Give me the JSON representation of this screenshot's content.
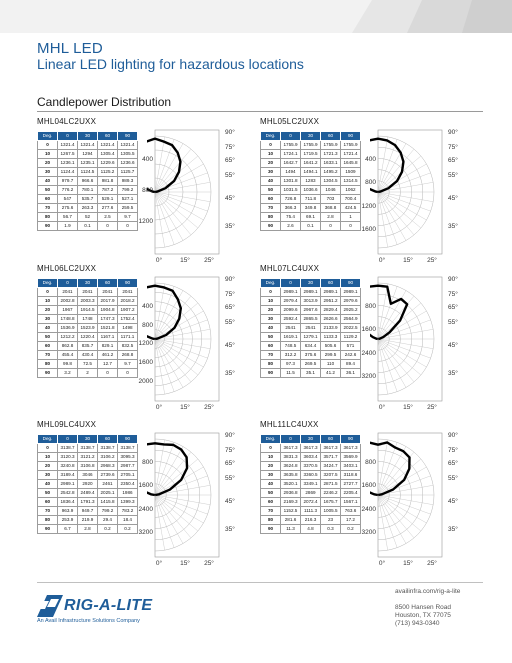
{
  "header": {
    "title": "MHL LED",
    "subtitle": "Linear LED lighting for hazardous locations"
  },
  "section": {
    "title": "Candlepower Distribution"
  },
  "products": [
    {
      "model": "MHL04LC2UXX",
      "columns": [
        "Deg.",
        "0",
        "30",
        "60",
        "90"
      ],
      "rows": [
        [
          "0",
          "1321.4",
          "1321.4",
          "1321.4",
          "1321.4"
        ],
        [
          "10",
          "1267.5",
          "1294",
          "1305.4",
          "1305.5"
        ],
        [
          "20",
          "1236.1",
          "1235.1",
          "1229.6",
          "1236.6"
        ],
        [
          "30",
          "1124.4",
          "1124.5",
          "1125.2",
          "1125.7"
        ],
        [
          "40",
          "979.7",
          "966.6",
          "981.8",
          "989.3"
        ],
        [
          "50",
          "776.2",
          "780.1",
          "787.2",
          "799.2"
        ],
        [
          "60",
          "547",
          "535.7",
          "529.1",
          "527.1"
        ],
        [
          "70",
          "275.6",
          "263.3",
          "277.6",
          "259.5"
        ],
        [
          "80",
          "56.7",
          "52",
          "2.5",
          "9.7"
        ],
        [
          "90",
          "1.9",
          "0.1",
          "0",
          "0"
        ]
      ],
      "scale_labels": [
        "400",
        "800",
        "1200"
      ],
      "angle_labels": [
        "90°",
        "75°",
        "65°",
        "55°",
        "45°",
        "35°"
      ],
      "bottom_labels": [
        "0°",
        "15°",
        "25°"
      ]
    },
    {
      "model": "MHL05LC2UXX",
      "columns": [
        "Deg.",
        "0",
        "30",
        "60",
        "90"
      ],
      "rows": [
        [
          "0",
          "1755.9",
          "1755.9",
          "1755.9",
          "1755.9"
        ],
        [
          "10",
          "1724.1",
          "1719.5",
          "1721.3",
          "1721.4"
        ],
        [
          "20",
          "1642.7",
          "1641.2",
          "1633.1",
          "1645.8"
        ],
        [
          "30",
          "1494",
          "1494.1",
          "1495.2",
          "1509"
        ],
        [
          "40",
          "1301.8",
          "1283",
          "1304.5",
          "1314.5"
        ],
        [
          "50",
          "1031.5",
          "1036.6",
          "1046",
          "1062"
        ],
        [
          "60",
          "726.8",
          "711.8",
          "703",
          "700.4"
        ],
        [
          "70",
          "366.3",
          "349.8",
          "368.8",
          "424.5"
        ],
        [
          "80",
          "75.4",
          "69.1",
          "2.8",
          "1"
        ],
        [
          "90",
          "2.6",
          "0.1",
          "0",
          "0"
        ]
      ],
      "scale_labels": [
        "400",
        "800",
        "1200",
        "1600"
      ],
      "angle_labels": [
        "90°",
        "75°",
        "65°",
        "55°",
        "45°",
        "35°"
      ],
      "bottom_labels": [
        "0°",
        "15°",
        "25°"
      ]
    },
    {
      "model": "MHL06LC2UXX",
      "columns": [
        "Deg.",
        "0",
        "30",
        "60",
        "90"
      ],
      "rows": [
        [
          "0",
          "2041",
          "2041",
          "2041",
          "2041"
        ],
        [
          "10",
          "2002.8",
          "2003.3",
          "2017.9",
          "2018.2"
        ],
        [
          "20",
          "1967",
          "1914.5",
          "1904.8",
          "1907.2"
        ],
        [
          "30",
          "1748.8",
          "1748",
          "1747.3",
          "1752.4"
        ],
        [
          "40",
          "1536.9",
          "1523.9",
          "1521.8",
          "1498"
        ],
        [
          "50",
          "1212.2",
          "1220.4",
          "1167.1",
          "1171.1"
        ],
        [
          "60",
          "862.8",
          "835.7",
          "829.1",
          "832.5"
        ],
        [
          "70",
          "455.4",
          "430.4",
          "461.2",
          "268.8"
        ],
        [
          "80",
          "99.8",
          "72.5",
          "12.7",
          "9.7"
        ],
        [
          "90",
          "3.2",
          "2",
          "0",
          "0"
        ]
      ],
      "scale_labels": [
        "400",
        "800",
        "1200",
        "1600",
        "2000"
      ],
      "angle_labels": [
        "90°",
        "75°",
        "65°",
        "55°",
        "45°",
        "35°"
      ],
      "bottom_labels": [
        "0°",
        "15°",
        "25°"
      ]
    },
    {
      "model": "MHL07LC4UXX",
      "columns": [
        "Deg.",
        "0",
        "30",
        "60",
        "90"
      ],
      "rows": [
        [
          "0",
          "2989.1",
          "2989.1",
          "2989.1",
          "2989.1"
        ],
        [
          "10",
          "2979.4",
          "3013.9",
          "2951.2",
          "2979.6"
        ],
        [
          "20",
          "2099.6",
          "2967.6",
          "2829.4",
          "2925.2"
        ],
        [
          "30",
          "2592.4",
          "2865.5",
          "2626.6",
          "2564.9"
        ],
        [
          "40",
          "2541",
          "2541",
          "2133.9",
          "2022.5"
        ],
        [
          "50",
          "1619.1",
          "1279.1",
          "1133.3",
          "1129.2"
        ],
        [
          "60",
          "748.5",
          "634.4",
          "505.6",
          "571"
        ],
        [
          "70",
          "312.2",
          "375.6",
          "299.5",
          "242.6"
        ],
        [
          "80",
          "97.3",
          "269.5",
          "110",
          "89.4"
        ],
        [
          "90",
          "11.5",
          "35.1",
          "41.2",
          "36.1"
        ]
      ],
      "scale_labels": [
        "800",
        "1600",
        "2400",
        "3200"
      ],
      "angle_labels": [
        "90°",
        "75°",
        "65°",
        "55°",
        "45°",
        "35°"
      ],
      "bottom_labels": [
        "0°",
        "15°",
        "25°"
      ]
    },
    {
      "model": "MHL09LC4UXX",
      "columns": [
        "Deg.",
        "0",
        "30",
        "60",
        "90"
      ],
      "rows": [
        [
          "0",
          "3138.7",
          "3138.7",
          "3138.7",
          "3138.7"
        ],
        [
          "10",
          "3120.3",
          "3121.2",
          "3106.2",
          "3095.3"
        ],
        [
          "20",
          "3240.8",
          "3106.8",
          "2968.3",
          "2987.7"
        ],
        [
          "30",
          "3189.4",
          "3046",
          "2739.6",
          "2705.1"
        ],
        [
          "40",
          "2989.1",
          "2920",
          "2461",
          "2350.4"
        ],
        [
          "50",
          "2542.8",
          "2489.4",
          "2025.1",
          "1986"
        ],
        [
          "60",
          "1836.4",
          "1791.3",
          "1415.8",
          "1399.3"
        ],
        [
          "70",
          "963.9",
          "949.7",
          "799.2",
          "783.2"
        ],
        [
          "80",
          "253.9",
          "219.9",
          "29.4",
          "18.4"
        ],
        [
          "90",
          "6.7",
          "2.8",
          "0.2",
          "0.2"
        ]
      ],
      "scale_labels": [
        "800",
        "1600",
        "2400",
        "3200"
      ],
      "angle_labels": [
        "90°",
        "75°",
        "65°",
        "55°",
        "45°",
        "35°"
      ],
      "bottom_labels": [
        "0°",
        "15°",
        "25°"
      ]
    },
    {
      "model": "MHL11LC4UXX",
      "columns": [
        "Deg.",
        "0",
        "30",
        "60",
        "90"
      ],
      "rows": [
        [
          "0",
          "3617.3",
          "3617.3",
          "3617.3",
          "3617.3"
        ],
        [
          "10",
          "3831.3",
          "3603.4",
          "3571.7",
          "3569.9"
        ],
        [
          "20",
          "3624.8",
          "3370.5",
          "3424.7",
          "3403.1"
        ],
        [
          "30",
          "3635.8",
          "3360.5",
          "3207.5",
          "3118.6"
        ],
        [
          "40",
          "3520.1",
          "3349.1",
          "2871.5",
          "2727.7"
        ],
        [
          "50",
          "2936.8",
          "2869",
          "2246.2",
          "2205.4"
        ],
        [
          "60",
          "2169.3",
          "2072.4",
          "1675.7",
          "1567.1"
        ],
        [
          "70",
          "1152.5",
          "1111.3",
          "1005.5",
          "763.6"
        ],
        [
          "80",
          "281.6",
          "216.3",
          "23",
          "17.2"
        ],
        [
          "90",
          "11.3",
          "4.8",
          "0.3",
          "0.2"
        ]
      ],
      "scale_labels": [
        "800",
        "1600",
        "2400",
        "3200"
      ],
      "angle_labels": [
        "90°",
        "75°",
        "65°",
        "55°",
        "45°",
        "35°"
      ],
      "bottom_labels": [
        "0°",
        "15°",
        "25°"
      ]
    }
  ],
  "footer": {
    "brand": "RIG-A-LITE",
    "tagline": "An Avail Infrastructure Solutions Company",
    "website": "availinfra.com/rig-a-lite",
    "address_lines": [
      "8500 Hansen Road",
      "Houston, TX 77075",
      "(713) 943-0340"
    ]
  },
  "colors": {
    "brand_blue": "#1f5d99",
    "table_header": "#1f5d99",
    "curve": "#000000"
  }
}
